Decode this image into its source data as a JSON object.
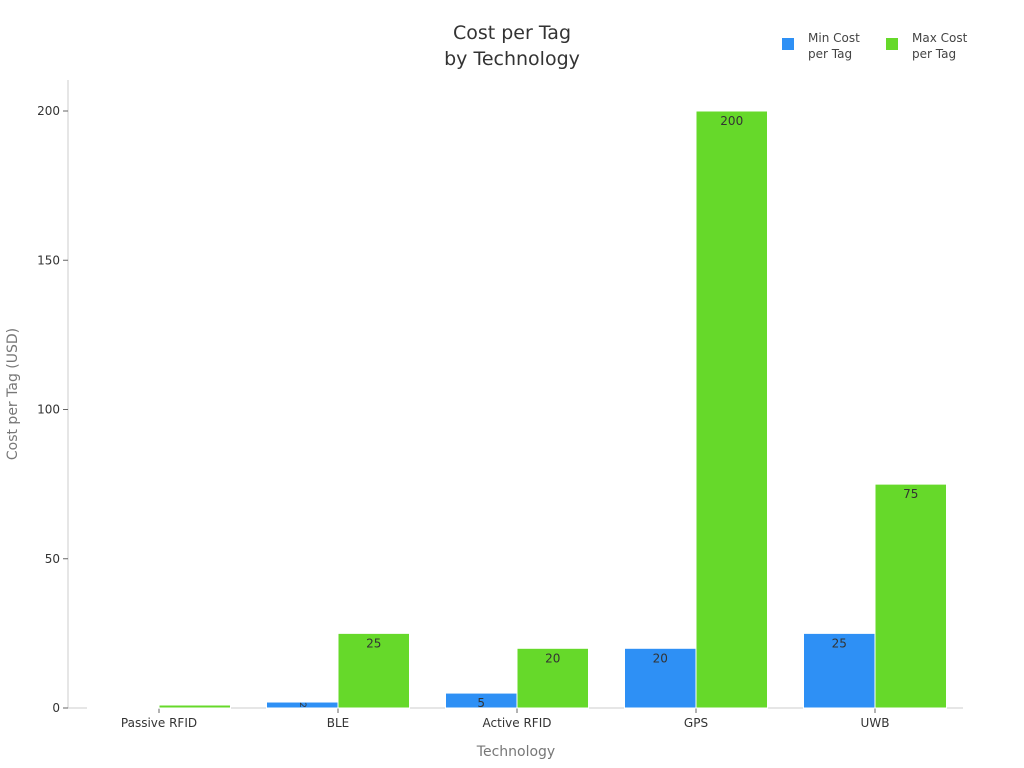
{
  "chart_data": {
    "type": "bar",
    "title": "Cost per Tag\nby Technology",
    "title_lines": [
      "Cost per Tag",
      "by Technology"
    ],
    "xlabel": "Technology",
    "ylabel": "Cost per Tag (USD)",
    "categories": [
      "Passive RFID",
      "BLE",
      "Active RFID",
      "GPS",
      "UWB"
    ],
    "series": [
      {
        "name": "Min Cost per Tag",
        "legend_lines": [
          "Min Cost",
          "per Tag"
        ],
        "color": "#2e90f5",
        "values": [
          0.1,
          2,
          5,
          20,
          25
        ]
      },
      {
        "name": "Max Cost per Tag",
        "legend_lines": [
          "Max Cost",
          "per Tag"
        ],
        "color": "#66d92a",
        "values": [
          1,
          25,
          20,
          200,
          75
        ]
      }
    ],
    "yticks": [
      0,
      50,
      100,
      150,
      200
    ],
    "ylim": [
      0,
      210
    ],
    "grid": false,
    "legend_position": "top-right"
  }
}
